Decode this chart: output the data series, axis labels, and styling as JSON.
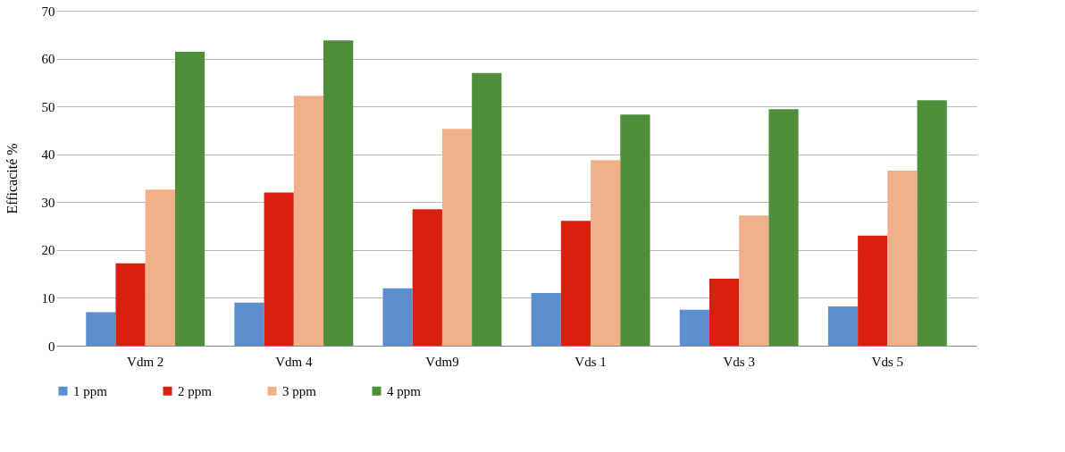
{
  "chart_data": {
    "type": "bar",
    "ylabel": "Efficacité %",
    "categories": [
      "Vdm 2",
      "Vdm 4",
      "Vdm9",
      "Vds 1",
      "Vds 3",
      "Vds 5"
    ],
    "series": [
      {
        "name": "1 ppm",
        "color": "#5b8fd0",
        "values": [
          7,
          9,
          12,
          11,
          7.5,
          8.2
        ]
      },
      {
        "name": "2 ppm",
        "color": "#d8200c",
        "values": [
          17.2,
          32,
          28.5,
          26.1,
          14,
          23
        ]
      },
      {
        "name": "3 ppm",
        "color": "#f2b08a",
        "values": [
          32.6,
          52.2,
          45.3,
          38.8,
          27.2,
          36.6
        ]
      },
      {
        "name": "4 ppm",
        "color": "#4f8f3a",
        "values": [
          61.4,
          63.8,
          57,
          48.3,
          49.4,
          51.3
        ]
      }
    ],
    "ylim": [
      0,
      70
    ],
    "yticks": [
      0,
      10,
      20,
      30,
      40,
      50,
      60,
      70
    ],
    "grid": "y",
    "legend": "bottom"
  }
}
